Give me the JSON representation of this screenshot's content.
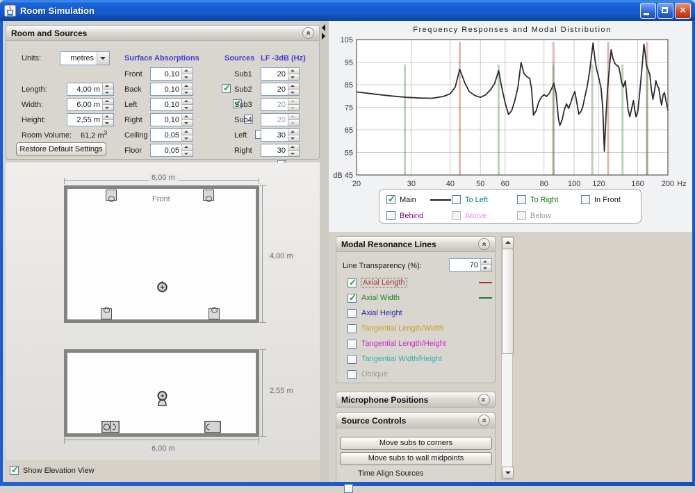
{
  "window": {
    "title": "Room Simulation"
  },
  "room_sources": {
    "title": "Room and Sources",
    "units_label": "Units:",
    "units_value": "metres",
    "col_absorptions": "Surface Absorptions",
    "col_sources": "Sources",
    "col_lf": "LF -3dB (Hz)",
    "dims": [
      {
        "label": "Length:",
        "value": "4,00 m"
      },
      {
        "label": "Width:",
        "value": "6,00 m"
      },
      {
        "label": "Height:",
        "value": "2,55 m"
      }
    ],
    "volume_label": "Room Volume:",
    "volume_value": "61,2 m",
    "volume_exp": "3",
    "restore_button": "Restore Default Settings",
    "absorptions": [
      {
        "label": "Front",
        "value": "0,10"
      },
      {
        "label": "Back",
        "value": "0,10"
      },
      {
        "label": "Left",
        "value": "0,10"
      },
      {
        "label": "Right",
        "value": "0,10"
      },
      {
        "label": "Ceiling",
        "value": "0,05"
      },
      {
        "label": "Floor",
        "value": "0,05"
      }
    ],
    "sources": [
      {
        "label": "Sub1",
        "checked": true,
        "lf": "20",
        "disabled": false
      },
      {
        "label": "Sub2",
        "checked": true,
        "lf": "20",
        "disabled": false
      },
      {
        "label": "Sub3",
        "checked": false,
        "lf": "20",
        "disabled": true
      },
      {
        "label": "Sub4",
        "checked": false,
        "lf": "20",
        "disabled": true
      },
      {
        "label": "Left",
        "checked": true,
        "lf": "30",
        "disabled": false
      },
      {
        "label": "Right",
        "checked": true,
        "lf": "30",
        "disabled": false
      }
    ]
  },
  "plan_view": {
    "top_dim": "6,00 m",
    "front_label": "Front",
    "side_dim": "4,00 m"
  },
  "elevation_view": {
    "side_dim": "2,55 m",
    "bottom_dim": "6,00 m"
  },
  "show_elevation_label": "Show Elevation View",
  "chart_data": {
    "type": "line",
    "title": "Frequency Responses and Modal Distribution",
    "xscale": "log",
    "xlim": [
      20,
      200
    ],
    "ylim": [
      45,
      105
    ],
    "grid": true,
    "x_ticks": [
      20,
      30,
      40,
      50,
      60,
      80,
      100,
      120,
      160,
      200
    ],
    "x_tick_labels": [
      "20",
      "30",
      "40",
      "50",
      "60",
      "80",
      "100",
      "120",
      "160",
      "200"
    ],
    "x_unit": "Hz",
    "y_ticks": [
      105,
      95,
      85,
      75,
      65,
      55,
      45
    ],
    "y_tick_labels": [
      "105",
      "95",
      "85",
      "75",
      "65",
      "55",
      "dB 45"
    ],
    "series": [
      {
        "name": "Main",
        "color": "#2b2b2b",
        "points": [
          [
            20,
            81.8
          ],
          [
            23,
            80.8
          ],
          [
            26,
            80
          ],
          [
            29,
            79.4
          ],
          [
            32,
            79.1
          ],
          [
            35,
            79
          ],
          [
            38,
            79.8
          ],
          [
            40,
            81
          ],
          [
            41.5,
            84
          ],
          [
            42.9,
            91.8
          ],
          [
            44.5,
            86
          ],
          [
            46,
            82
          ],
          [
            48,
            80.2
          ],
          [
            50,
            79.4
          ],
          [
            52,
            80.5
          ],
          [
            54,
            83
          ],
          [
            55.5,
            85.5
          ],
          [
            57.2,
            91.2
          ],
          [
            58.5,
            84
          ],
          [
            60,
            77
          ],
          [
            61.5,
            71.8
          ],
          [
            63,
            73.5
          ],
          [
            64.5,
            78
          ],
          [
            66,
            84
          ],
          [
            67.5,
            94.8
          ],
          [
            69,
            90
          ],
          [
            70.5,
            88.5
          ],
          [
            72,
            87.8
          ],
          [
            73,
            83
          ],
          [
            74,
            71.5
          ],
          [
            75.5,
            73.5
          ],
          [
            77,
            77.5
          ],
          [
            78.5,
            79.5
          ],
          [
            80,
            80.6
          ],
          [
            81.5,
            79.8
          ],
          [
            83,
            81
          ],
          [
            84.5,
            83
          ],
          [
            86,
            85.6
          ],
          [
            87.5,
            81
          ],
          [
            89,
            70
          ],
          [
            90,
            67
          ],
          [
            91.5,
            69.5
          ],
          [
            93,
            74
          ],
          [
            94.5,
            76.5
          ],
          [
            96,
            74.5
          ],
          [
            97.5,
            77
          ],
          [
            99,
            80
          ],
          [
            100.5,
            82
          ],
          [
            102,
            77
          ],
          [
            103.5,
            72
          ],
          [
            105,
            73
          ],
          [
            106.5,
            75
          ],
          [
            108,
            79
          ],
          [
            110,
            84
          ],
          [
            112,
            90.5
          ],
          [
            114,
            99
          ],
          [
            115,
            103.5
          ],
          [
            116.5,
            96.5
          ],
          [
            118,
            92
          ],
          [
            120,
            88
          ],
          [
            122,
            83.5
          ],
          [
            123.5,
            75
          ],
          [
            125,
            55.5
          ],
          [
            126.5,
            71
          ],
          [
            128,
            83
          ],
          [
            130,
            94
          ],
          [
            131.5,
            100.5
          ],
          [
            133,
            97
          ],
          [
            135,
            94.5
          ],
          [
            137,
            93.6
          ],
          [
            139,
            93
          ],
          [
            140.5,
            90
          ],
          [
            142,
            86
          ],
          [
            144,
            84
          ],
          [
            146,
            86.8
          ],
          [
            147.5,
            80
          ],
          [
            149,
            74
          ],
          [
            151,
            70.8
          ],
          [
            153,
            74.5
          ],
          [
            155,
            78
          ],
          [
            156.5,
            74
          ],
          [
            158,
            70.8
          ],
          [
            160,
            73
          ],
          [
            162,
            80
          ],
          [
            164,
            88
          ],
          [
            166,
            96
          ],
          [
            167.5,
            103
          ],
          [
            169,
            99
          ],
          [
            171,
            93
          ],
          [
            173,
            91.5
          ],
          [
            175,
            89.5
          ],
          [
            177,
            83
          ],
          [
            179,
            78.5
          ],
          [
            181,
            82
          ],
          [
            183,
            86.8
          ],
          [
            185,
            84.5
          ],
          [
            187,
            83.5
          ],
          [
            189,
            79
          ],
          [
            191,
            76
          ],
          [
            193,
            80.5
          ],
          [
            195,
            81.5
          ],
          [
            197,
            78
          ],
          [
            200,
            73.8
          ]
        ]
      }
    ],
    "modal_lines": [
      {
        "name": "Axial Length",
        "color": "rgba(190,60,60,0.38)",
        "top_db": 104,
        "freqs": [
          42.9,
          85.8,
          128.6,
          171.5
        ]
      },
      {
        "name": "Axial Width",
        "color": "rgba(70,140,70,0.38)",
        "top_db": 94,
        "freqs": [
          28.6,
          57.2,
          85.8,
          114.3,
          143.0,
          171.5
        ]
      }
    ]
  },
  "legend": {
    "items": [
      {
        "label": "Main",
        "checked": true,
        "disabled": false,
        "color": "#111111",
        "sample_color": "#1a1a1a"
      },
      {
        "label": "To Left",
        "checked": false,
        "disabled": false,
        "color": "#008080"
      },
      {
        "label": "To Right",
        "checked": false,
        "disabled": false,
        "color": "#008000"
      },
      {
        "label": "In Front",
        "checked": false,
        "disabled": false,
        "color": "#14141e"
      },
      {
        "label": "Behind",
        "checked": false,
        "disabled": false,
        "color": "#800080"
      },
      {
        "label": "Above",
        "checked": false,
        "disabled": true,
        "color": "#e78ce7"
      },
      {
        "label": "Below",
        "checked": false,
        "disabled": true,
        "color": "#9b9b9b"
      }
    ]
  },
  "modal_panel": {
    "title": "Modal Resonance Lines",
    "transparency_label": "Line Transparency (%):",
    "transparency_value": "70",
    "items": [
      {
        "label": "Axial Length",
        "checked": true,
        "color": "#993333",
        "sample_color": "#b22a2a"
      },
      {
        "label": "Axial Width",
        "checked": true,
        "color": "#208020",
        "sample_color": "#208020"
      },
      {
        "label": "Axial Height",
        "checked": false,
        "color": "#2929a3"
      },
      {
        "label": "Tangential Length/Width",
        "checked": false,
        "color": "#c8a018"
      },
      {
        "label": "Tangential Length/Height",
        "checked": false,
        "color": "#cc22cc"
      },
      {
        "label": "Tangential Width/Height",
        "checked": false,
        "color": "#30b0a8"
      },
      {
        "label": "Oblique",
        "checked": false,
        "color": "#9b9b9b"
      }
    ]
  },
  "microphone_panel": {
    "title": "Microphone Positions"
  },
  "source_controls": {
    "title": "Source Controls",
    "buttons": [
      "Move subs to corners",
      "Move subs to wall midpoints"
    ],
    "time_align_label": "Time Align Sources",
    "time_align_checked": false
  }
}
